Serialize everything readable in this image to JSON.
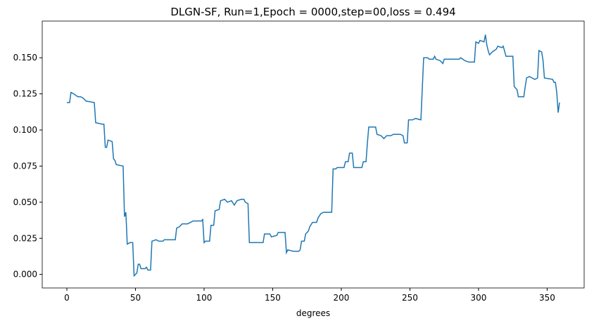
{
  "chart_data": {
    "type": "line",
    "title": "DLGN-SF, Run=1,Epoch = 0000,step=00,loss = 0.494",
    "xlabel": "degrees",
    "x": [
      0,
      2,
      3,
      5,
      8,
      10,
      12,
      14,
      20,
      21,
      26,
      27,
      28,
      29,
      30,
      33,
      34,
      35,
      36,
      41,
      42,
      43,
      44,
      46,
      48,
      49,
      50,
      51,
      52,
      53,
      54,
      57,
      58,
      59,
      61,
      62,
      65,
      67,
      70,
      71,
      79,
      80,
      82,
      84,
      88,
      90,
      92,
      98,
      99,
      100,
      101,
      104,
      105,
      107,
      108,
      111,
      112,
      115,
      117,
      120,
      122,
      124,
      127,
      129,
      130,
      132,
      133,
      143,
      144,
      148,
      149,
      153,
      154,
      159,
      160,
      161,
      165,
      169,
      170,
      171,
      173,
      174,
      176,
      177,
      179,
      182,
      183,
      185,
      187,
      193,
      194,
      196,
      197,
      202,
      203,
      205,
      206,
      208,
      209,
      215,
      216,
      218,
      219,
      220,
      225,
      226,
      229,
      231,
      233,
      236,
      238,
      243,
      245,
      246,
      248,
      249,
      252,
      254,
      258,
      260,
      263,
      264,
      267,
      268,
      269,
      272,
      274,
      275,
      286,
      287,
      290,
      293,
      297,
      298,
      300,
      301,
      304,
      305,
      306,
      307,
      308,
      310,
      313,
      314,
      317,
      318,
      320,
      325,
      326,
      328,
      329,
      333,
      334,
      335,
      337,
      341,
      343,
      344,
      346,
      347,
      348,
      354,
      355,
      356,
      357,
      358,
      359
    ],
    "series": [
      {
        "name": "loss",
        "color": "#1f77b4",
        "values": [
          0.119,
          0.119,
          0.126,
          0.125,
          0.123,
          0.123,
          0.122,
          0.12,
          0.119,
          0.105,
          0.104,
          0.104,
          0.088,
          0.088,
          0.093,
          0.092,
          0.08,
          0.079,
          0.076,
          0.075,
          0.04,
          0.043,
          0.021,
          0.022,
          0.022,
          -0.001,
          0.0,
          0.001,
          0.007,
          0.007,
          0.004,
          0.004,
          0.005,
          0.003,
          0.003,
          0.023,
          0.024,
          0.023,
          0.023,
          0.024,
          0.024,
          0.032,
          0.033,
          0.035,
          0.035,
          0.036,
          0.037,
          0.037,
          0.038,
          0.022,
          0.023,
          0.023,
          0.034,
          0.034,
          0.044,
          0.045,
          0.051,
          0.052,
          0.05,
          0.051,
          0.048,
          0.051,
          0.052,
          0.052,
          0.05,
          0.049,
          0.022,
          0.022,
          0.028,
          0.028,
          0.026,
          0.027,
          0.029,
          0.029,
          0.015,
          0.017,
          0.016,
          0.016,
          0.017,
          0.023,
          0.023,
          0.028,
          0.03,
          0.033,
          0.036,
          0.036,
          0.039,
          0.042,
          0.043,
          0.043,
          0.073,
          0.073,
          0.074,
          0.074,
          0.078,
          0.078,
          0.084,
          0.084,
          0.074,
          0.074,
          0.078,
          0.078,
          0.091,
          0.102,
          0.102,
          0.097,
          0.096,
          0.094,
          0.096,
          0.096,
          0.097,
          0.097,
          0.096,
          0.091,
          0.091,
          0.107,
          0.107,
          0.108,
          0.107,
          0.15,
          0.15,
          0.149,
          0.149,
          0.151,
          0.149,
          0.148,
          0.146,
          0.149,
          0.149,
          0.15,
          0.148,
          0.147,
          0.147,
          0.161,
          0.16,
          0.162,
          0.161,
          0.166,
          0.159,
          0.155,
          0.152,
          0.154,
          0.156,
          0.158,
          0.157,
          0.158,
          0.151,
          0.151,
          0.13,
          0.128,
          0.123,
          0.123,
          0.13,
          0.136,
          0.137,
          0.135,
          0.136,
          0.155,
          0.154,
          0.148,
          0.136,
          0.135,
          0.133,
          0.133,
          0.126,
          0.112,
          0.119
        ]
      }
    ],
    "xlim": [
      -17.95,
      376.95
    ],
    "xticks": [
      0,
      50,
      100,
      150,
      200,
      250,
      300,
      350
    ],
    "ylim": [
      -0.0094,
      0.1754
    ],
    "yticks": [
      {
        "value": 0,
        "label": "0.000"
      },
      {
        "value": 0.025,
        "label": "0.025"
      },
      {
        "value": 0.05,
        "label": "0.050"
      },
      {
        "value": 0.075,
        "label": "0.075"
      },
      {
        "value": 0.1,
        "label": "0.100"
      },
      {
        "value": 0.125,
        "label": "0.125"
      },
      {
        "value": 0.15,
        "label": "0.150"
      }
    ]
  }
}
